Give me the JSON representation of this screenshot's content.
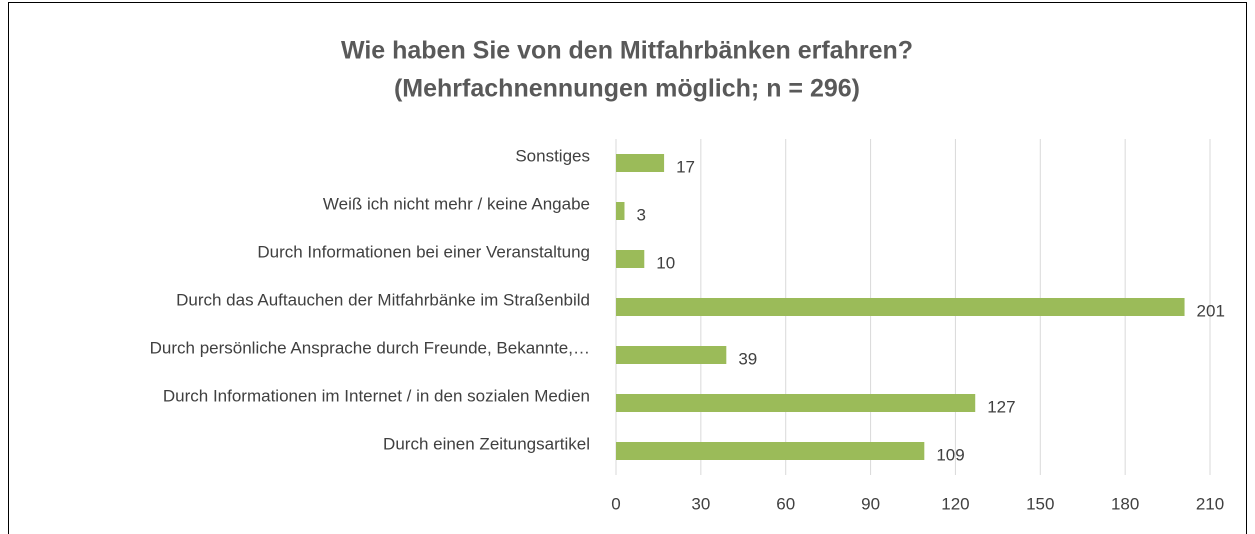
{
  "chart_data": {
    "type": "bar",
    "orientation": "horizontal",
    "title": "Wie haben Sie von den Mitfahrbänken erfahren?",
    "subtitle": "(Mehrfachnennungen möglich; n = 296)",
    "categories": [
      "Sonstiges",
      "Weiß ich nicht mehr / keine Angabe",
      "Durch Informationen bei einer Veranstaltung",
      "Durch das Auftauchen der Mitfahrbänke im Straßenbild",
      "Durch persönliche Ansprache durch Freunde, Bekannte,…",
      "Durch Informationen im Internet / in den sozialen Medien",
      "Durch einen Zeitungsartikel"
    ],
    "values": [
      17,
      3,
      10,
      201,
      39,
      127,
      109
    ],
    "color": "#9bbb59",
    "xlim": [
      0,
      210
    ],
    "xticks": [
      0,
      30,
      60,
      90,
      120,
      150,
      180,
      210
    ],
    "grid": true
  }
}
